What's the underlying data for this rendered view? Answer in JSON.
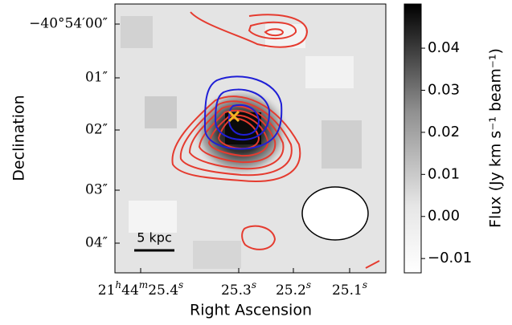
{
  "figure": {
    "x_label": "Right Ascension",
    "y_label": "Declination",
    "x_ticks": [
      "21h44m25.4s",
      "25.3s",
      "25.2s",
      "25.1s"
    ],
    "y_ticks": [
      "−40°54′00″",
      "01″",
      "02″",
      "03″",
      "04″"
    ],
    "scale_bar": "5 kpc",
    "colorbar": {
      "label": "Flux (Jy km s⁻¹ beam⁻¹)",
      "lim": [
        -0.0134,
        0.0505
      ],
      "ticks": [
        0.04,
        0.03,
        0.02,
        0.01,
        {
          "value": 0,
          "label": "0.00"
        },
        {
          "value": -0.01,
          "label": "−0.01"
        }
      ]
    }
  }
}
